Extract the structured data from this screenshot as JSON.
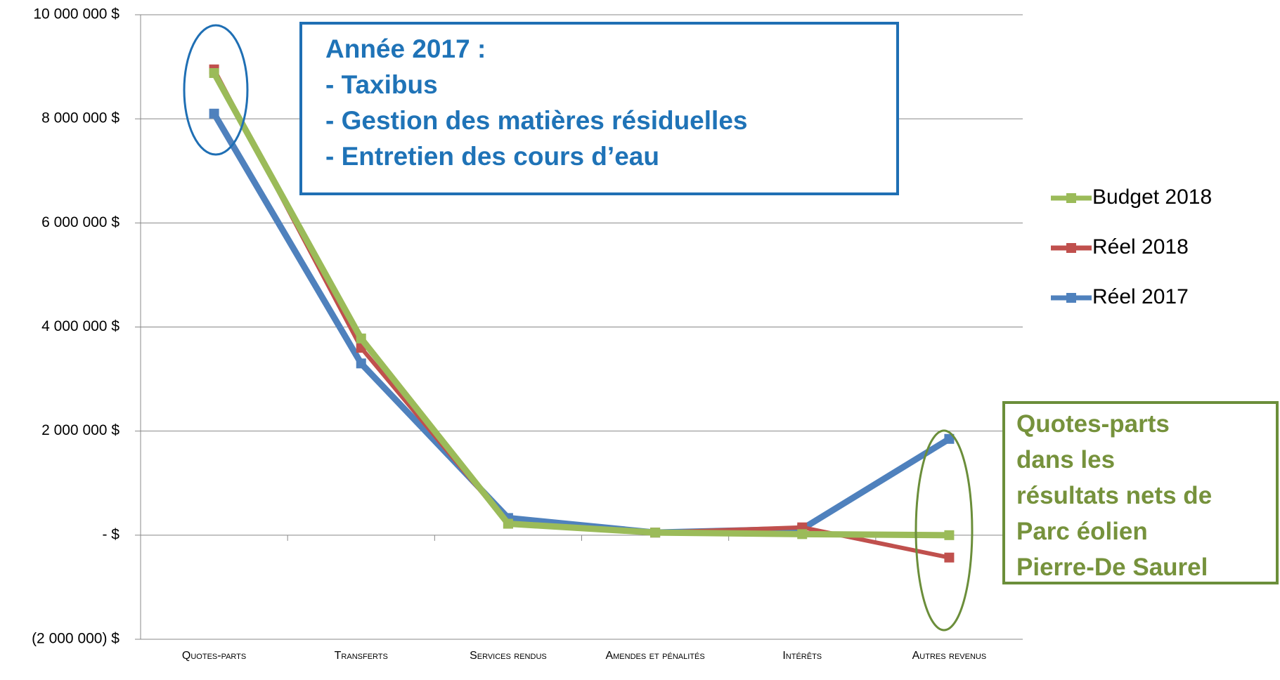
{
  "chart_data": {
    "type": "line",
    "categories": [
      "Quotes-parts",
      "Transferts",
      "Services rendus",
      "Amendes et pénalités",
      "Intérêts",
      "Autres revenus"
    ],
    "series": [
      {
        "name": "Budget 2018",
        "color": "#9bbb59",
        "values": [
          8880000,
          3780000,
          220000,
          50000,
          20000,
          0
        ]
      },
      {
        "name": "Réel 2018",
        "color": "#c0504d",
        "values": [
          8950000,
          3600000,
          220000,
          50000,
          150000,
          -430000
        ]
      },
      {
        "name": "Réel 2017",
        "color": "#4f81bd",
        "values": [
          8100000,
          3300000,
          330000,
          50000,
          120000,
          1850000
        ]
      }
    ],
    "ylim": [
      -2000000,
      10000000
    ],
    "yticks": [
      {
        "value": -2000000,
        "label": "(2 000 000) $"
      },
      {
        "value": 0,
        "label": "-   $"
      },
      {
        "value": 2000000,
        "label": "2 000 000  $"
      },
      {
        "value": 4000000,
        "label": "4 000 000  $"
      },
      {
        "value": 6000000,
        "label": "6 000 000  $"
      },
      {
        "value": 8000000,
        "label": "8 000 000  $"
      },
      {
        "value": 10000000,
        "label": "10 000 000  $"
      }
    ],
    "grid": true,
    "legend": "right",
    "annotations": [
      {
        "lines": [
          "Année 2017 :",
          "- Taxibus",
          "- Gestion des matières résiduelles",
          "- Entretien des cours d’eau"
        ]
      },
      {
        "lines": [
          "Quotes-parts",
          "dans les",
          "résultats nets de",
          "Parc éolien",
          "Pierre-De Saurel"
        ]
      }
    ]
  }
}
